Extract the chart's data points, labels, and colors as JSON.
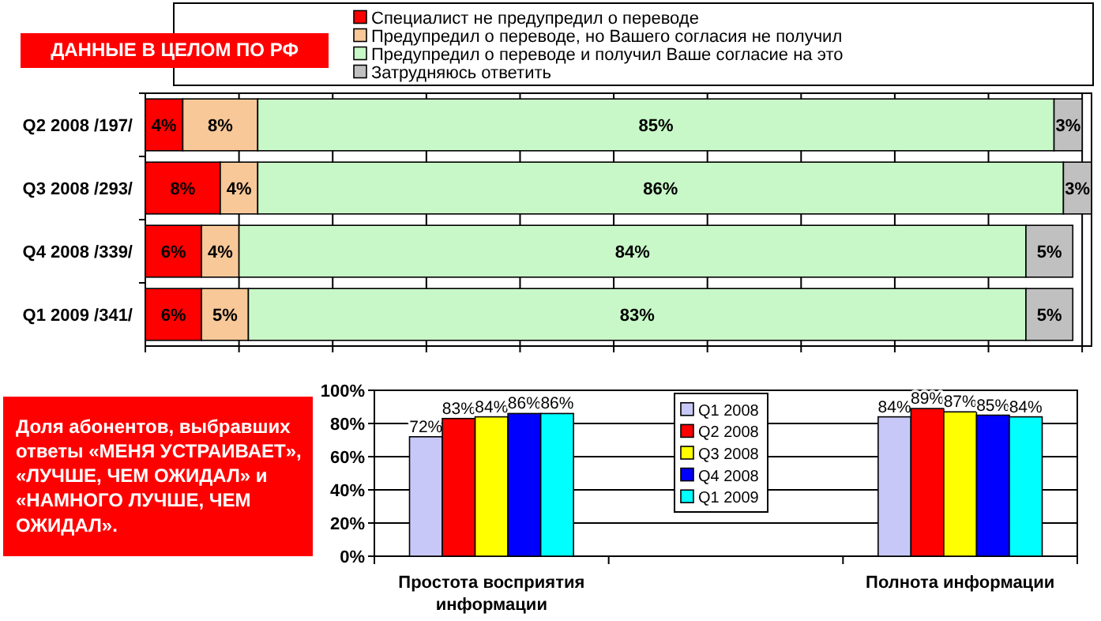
{
  "chart_data": [
    {
      "type": "bar",
      "orientation": "horizontal",
      "stacked": true,
      "title": "ДАННЫЕ В ЦЕЛОМ ПО РФ",
      "categories": [
        "Q2 2008 /197/",
        "Q3 2008 /293/",
        "Q4 2008 /339/",
        "Q1 2009 /341/"
      ],
      "xlim": [
        0,
        101
      ],
      "xticks": [
        {
          "value": 0,
          "label": null
        },
        {
          "value": 10,
          "label": null
        },
        {
          "value": 20,
          "label": null
        },
        {
          "value": 30,
          "label": null
        },
        {
          "value": 40,
          "label": null
        },
        {
          "value": 50,
          "label": null
        },
        {
          "value": 60,
          "label": null
        },
        {
          "value": 70,
          "label": null
        },
        {
          "value": 80,
          "label": null
        },
        {
          "value": 90,
          "label": null
        },
        {
          "value": 100,
          "label": null
        }
      ],
      "tick_labels": "y",
      "grid": "x",
      "legend": "top",
      "series": [
        {
          "name": "Специалист не предупредил о переводе",
          "color": "#ff0000",
          "values": [
            4,
            8,
            6,
            6
          ],
          "value_labels": [
            "4%",
            "8%",
            "6%",
            "6%"
          ]
        },
        {
          "name": "Предупредил о переводе, но Вашего согласия не получил",
          "color": "#f8c898",
          "values": [
            8,
            4,
            4,
            5
          ],
          "value_labels": [
            "8%",
            "4%",
            "4%",
            "5%"
          ]
        },
        {
          "name": "Предупредил о переводе и получил Ваше согласие на это",
          "color": "#c8f8c8",
          "values": [
            85,
            86,
            84,
            83
          ],
          "value_labels": [
            "85%",
            "86%",
            "84%",
            "83%"
          ]
        },
        {
          "name": "Затрудняюсь ответить",
          "color": "#c0c0c0",
          "values": [
            3,
            3,
            5,
            5
          ],
          "value_labels": [
            "3%",
            "3%",
            "5%",
            "5%"
          ]
        }
      ]
    },
    {
      "type": "bar",
      "title": "Доля абонентов, выбравших ответы «МЕНЯ УСТРАИВАЕТ», «ЛУЧШЕ, ЧЕМ ОЖИДАЛ» и «НАМНОГО ЛУЧШЕ, ЧЕМ ОЖИДАЛ».",
      "categories": [
        "Простота восприятия информации",
        null,
        "Полнота информации"
      ],
      "ylim": [
        0,
        100
      ],
      "yticks": [
        {
          "value": 0,
          "label": "0%"
        },
        {
          "value": 20,
          "label": "20%"
        },
        {
          "value": 40,
          "label": "40%"
        },
        {
          "value": 60,
          "label": "60%"
        },
        {
          "value": 80,
          "label": "80%"
        },
        {
          "value": 100,
          "label": "100%"
        }
      ],
      "grid": "y",
      "legend": "center",
      "series": [
        {
          "name": "Q1 2008",
          "color": "#c8c8f8",
          "values": [
            72,
            null,
            84
          ],
          "value_labels": [
            "72%",
            null,
            "84%"
          ]
        },
        {
          "name": "Q2 2008",
          "color": "#ff0000",
          "values": [
            83,
            null,
            89
          ],
          "value_labels": [
            "83%",
            null,
            "89%"
          ]
        },
        {
          "name": "Q3 2008",
          "color": "#ffff00",
          "values": [
            84,
            null,
            87
          ],
          "value_labels": [
            "84%",
            null,
            "87%"
          ]
        },
        {
          "name": "Q4 2008",
          "color": "#0000ff",
          "values": [
            86,
            null,
            85
          ],
          "value_labels": [
            "86%",
            null,
            "85%"
          ]
        },
        {
          "name": "Q1 2009",
          "color": "#00ffff",
          "values": [
            86,
            null,
            84
          ],
          "value_labels": [
            "86%",
            null,
            "84%"
          ]
        }
      ]
    }
  ]
}
